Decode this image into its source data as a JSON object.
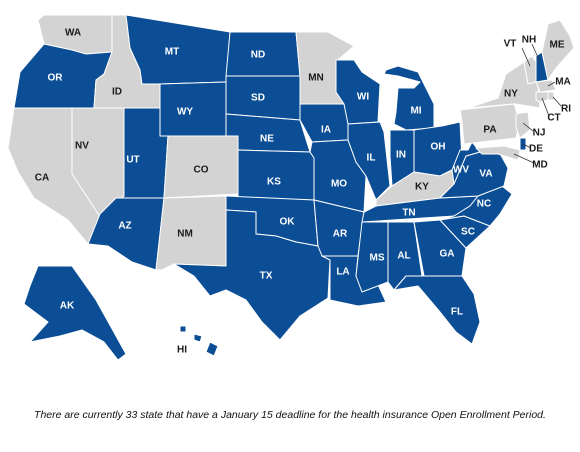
{
  "colors": {
    "deadline": "#0c4e96",
    "other": "#d3d3d3",
    "border": "#ffffff",
    "label_on_blue": "#ffffff",
    "label_on_gray": "#1a1a1a",
    "leader_line": "#333333"
  },
  "map": {
    "states": [
      {
        "abbr": "WA",
        "status": "other"
      },
      {
        "abbr": "OR",
        "status": "deadline"
      },
      {
        "abbr": "CA",
        "status": "other"
      },
      {
        "abbr": "NV",
        "status": "other"
      },
      {
        "abbr": "ID",
        "status": "other"
      },
      {
        "abbr": "MT",
        "status": "deadline"
      },
      {
        "abbr": "WY",
        "status": "deadline"
      },
      {
        "abbr": "UT",
        "status": "deadline"
      },
      {
        "abbr": "AZ",
        "status": "deadline"
      },
      {
        "abbr": "CO",
        "status": "other"
      },
      {
        "abbr": "NM",
        "status": "other"
      },
      {
        "abbr": "ND",
        "status": "deadline"
      },
      {
        "abbr": "SD",
        "status": "deadline"
      },
      {
        "abbr": "NE",
        "status": "deadline"
      },
      {
        "abbr": "KS",
        "status": "deadline"
      },
      {
        "abbr": "OK",
        "status": "deadline"
      },
      {
        "abbr": "TX",
        "status": "deadline"
      },
      {
        "abbr": "MN",
        "status": "other"
      },
      {
        "abbr": "IA",
        "status": "deadline"
      },
      {
        "abbr": "MO",
        "status": "deadline"
      },
      {
        "abbr": "AR",
        "status": "deadline"
      },
      {
        "abbr": "LA",
        "status": "deadline"
      },
      {
        "abbr": "WI",
        "status": "deadline"
      },
      {
        "abbr": "IL",
        "status": "deadline"
      },
      {
        "abbr": "MI",
        "status": "deadline"
      },
      {
        "abbr": "IN",
        "status": "deadline"
      },
      {
        "abbr": "OH",
        "status": "deadline"
      },
      {
        "abbr": "KY",
        "status": "other"
      },
      {
        "abbr": "TN",
        "status": "deadline"
      },
      {
        "abbr": "MS",
        "status": "deadline"
      },
      {
        "abbr": "AL",
        "status": "deadline"
      },
      {
        "abbr": "GA",
        "status": "deadline"
      },
      {
        "abbr": "FL",
        "status": "deadline"
      },
      {
        "abbr": "SC",
        "status": "deadline"
      },
      {
        "abbr": "NC",
        "status": "deadline"
      },
      {
        "abbr": "VA",
        "status": "deadline"
      },
      {
        "abbr": "WV",
        "status": "deadline"
      },
      {
        "abbr": "PA",
        "status": "other"
      },
      {
        "abbr": "NY",
        "status": "other"
      },
      {
        "abbr": "VT",
        "status": "other"
      },
      {
        "abbr": "NH",
        "status": "deadline"
      },
      {
        "abbr": "ME",
        "status": "other"
      },
      {
        "abbr": "MA",
        "status": "other"
      },
      {
        "abbr": "RI",
        "status": "other"
      },
      {
        "abbr": "CT",
        "status": "other"
      },
      {
        "abbr": "NJ",
        "status": "other"
      },
      {
        "abbr": "DE",
        "status": "deadline"
      },
      {
        "abbr": "MD",
        "status": "other"
      },
      {
        "abbr": "AK",
        "status": "deadline"
      },
      {
        "abbr": "HI",
        "status": "deadline"
      }
    ]
  },
  "caption": "There are currently 33 state that have a January 15 deadline for the health insurance Open Enrollment Period."
}
